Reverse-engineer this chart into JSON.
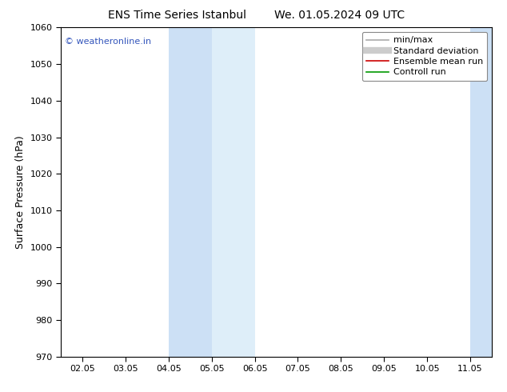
{
  "title_left": "ENS Time Series Istanbul",
  "title_right": "We. 01.05.2024 09 UTC",
  "ylabel": "Surface Pressure (hPa)",
  "ylim": [
    970,
    1060
  ],
  "yticks": [
    970,
    980,
    990,
    1000,
    1010,
    1020,
    1030,
    1040,
    1050,
    1060
  ],
  "xlim": [
    0,
    9
  ],
  "xtick_labels": [
    "02.05",
    "03.05",
    "04.05",
    "05.05",
    "06.05",
    "07.05",
    "08.05",
    "09.05",
    "10.05",
    "11.05"
  ],
  "xtick_positions": [
    0,
    1,
    2,
    3,
    4,
    5,
    6,
    7,
    8,
    9
  ],
  "shaded_regions": [
    {
      "xmin": 2.0,
      "xmax": 3.0,
      "color": "#cce0f5",
      "alpha": 1.0
    },
    {
      "xmin": 3.0,
      "xmax": 4.0,
      "color": "#deeef9",
      "alpha": 1.0
    },
    {
      "xmin": 9.0,
      "xmax": 9.5,
      "color": "#cce0f5",
      "alpha": 1.0
    },
    {
      "xmin": 9.5,
      "xmax": 10.0,
      "color": "#deeef9",
      "alpha": 1.0
    }
  ],
  "watermark_text": "© weatheronline.in",
  "watermark_color": "#3355bb",
  "background_color": "#ffffff",
  "legend_entries": [
    {
      "label": "min/max",
      "color": "#aaaaaa",
      "lw": 1.2,
      "linestyle": "-"
    },
    {
      "label": "Standard deviation",
      "color": "#cccccc",
      "lw": 6,
      "linestyle": "-"
    },
    {
      "label": "Ensemble mean run",
      "color": "#cc0000",
      "lw": 1.2,
      "linestyle": "-"
    },
    {
      "label": "Controll run",
      "color": "#009900",
      "lw": 1.2,
      "linestyle": "-"
    }
  ],
  "title_fontsize": 10,
  "axis_label_fontsize": 9,
  "tick_fontsize": 8,
  "legend_fontsize": 8,
  "watermark_fontsize": 8
}
